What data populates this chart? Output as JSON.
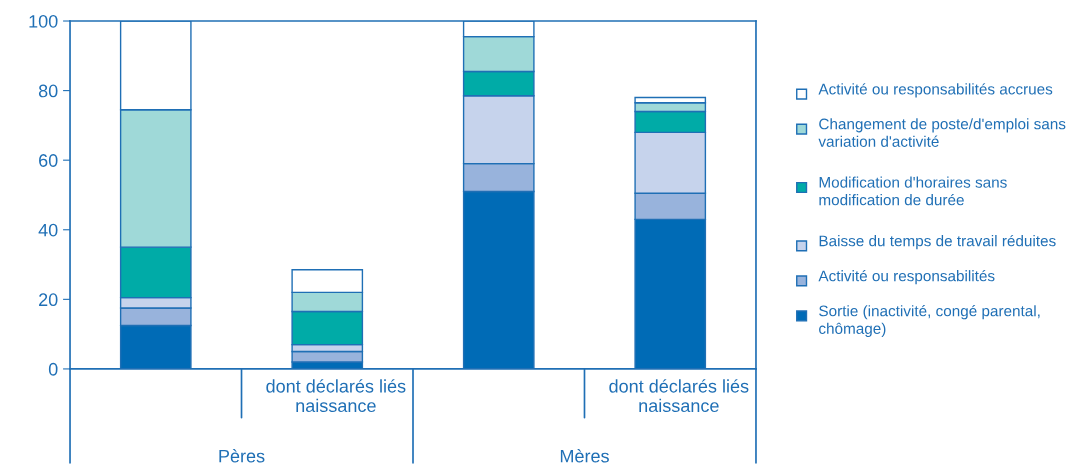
{
  "chart_data": {
    "type": "bar",
    "stacked": true,
    "categories": [
      null,
      "dont déclarés liés naissance",
      null,
      "dont déclarés liés naissance"
    ],
    "series": [
      {
        "name": "Sortie (inactivité, congé parental, chômage)",
        "color": "#006bb6",
        "values": [
          12.5,
          2,
          51,
          43
        ]
      },
      {
        "name": "Activité ou responsabilités",
        "color": "#98b3dc",
        "values": [
          5,
          3,
          8,
          7.5
        ]
      },
      {
        "name": "Baisse du temps de travail réduites",
        "color": "#c6d3ec",
        "values": [
          3,
          2,
          19.5,
          17.5
        ]
      },
      {
        "name": "Modification d'horaires sans modification de durée",
        "color": "#00aba7",
        "values": [
          14.5,
          9.5,
          7,
          6
        ]
      },
      {
        "name": "Changement de poste/d'emploi sans variation d'activité",
        "color": "#9fd9d8",
        "values": [
          39.5,
          5.5,
          10,
          2.5
        ]
      },
      {
        "name": "Activité ou responsabilités accrues",
        "color": "#ffffff",
        "values": [
          25.5,
          6.5,
          4.5,
          1.5
        ]
      }
    ],
    "annotations": [
      "Pères",
      "Mères"
    ],
    "ylim": [
      0,
      100
    ],
    "yticks": [
      0,
      20,
      40,
      60,
      80,
      100
    ],
    "legend": "right"
  }
}
